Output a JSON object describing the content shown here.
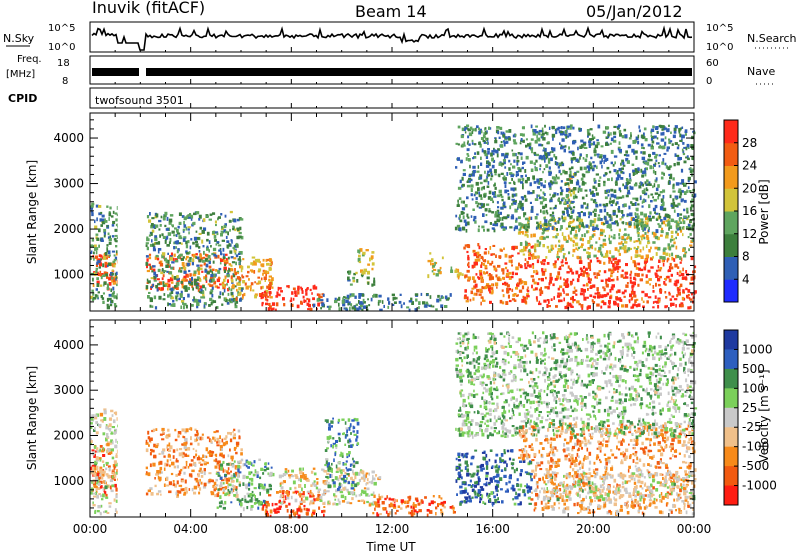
{
  "header": {
    "station": "Inuvik (fitACF)",
    "beam": "Beam 14",
    "date": "05/Jan/2012"
  },
  "top_panels": {
    "nsky_label": "N.Sky",
    "nsky_ticks": [
      "10^5",
      "10^0"
    ],
    "nsearch_label": "N.Search",
    "nsearch_ticks": [
      "10^5",
      "10^0"
    ],
    "freq_label_1": "Freq.",
    "freq_label_2": "[MHz]",
    "freq_ticks": [
      "18",
      "8"
    ],
    "nave_label": "Nave",
    "nave_ticks": [
      "60",
      "0"
    ],
    "cpid_label": "CPID",
    "cpid_value": "twofsound 3501"
  },
  "colors": {
    "power_scale": [
      "#1f2bff",
      "#2f5fb5",
      "#3d7f3d",
      "#5fa55f",
      "#d2c43a",
      "#f29a1c",
      "#f25c12",
      "#ff2a1a"
    ],
    "velocity_scale": [
      "#ff1d12",
      "#f25a10",
      "#f78a1a",
      "#f0c08a",
      "#c9c9c9",
      "#7bd05a",
      "#3f8f4b",
      "#2e5fbf",
      "#1f3aa0"
    ]
  },
  "chart_data": [
    {
      "type": "heatmap",
      "name": "power-panel",
      "ylabel": "Slant Range [km]",
      "y_ticks": [
        "1000",
        "2000",
        "3000",
        "4000"
      ],
      "y_tick_values": [
        1000,
        2000,
        3000,
        4000
      ],
      "ylim": [
        200,
        4550
      ],
      "x_ticks": [
        "00:00",
        "04:00",
        "08:00",
        "12:00",
        "16:00",
        "20:00",
        "00:00"
      ],
      "x_tick_values": [
        0,
        4,
        8,
        12,
        16,
        20,
        24
      ],
      "xlim": [
        0,
        24
      ],
      "colorbar": {
        "label": "Power [dB]",
        "ticks": [
          "4",
          "8",
          "12",
          "16",
          "20",
          "24",
          "28"
        ],
        "range": [
          0,
          32
        ]
      },
      "regions": [
        {
          "t0": 0.0,
          "t1": 1.1,
          "r0": 700,
          "r1": 1500,
          "level": 0.85
        },
        {
          "t0": 0.0,
          "t1": 1.1,
          "r0": 300,
          "r1": 2600,
          "level": 0.35
        },
        {
          "t0": 2.2,
          "t1": 5.5,
          "r0": 700,
          "r1": 1500,
          "level": 0.8
        },
        {
          "t0": 2.2,
          "t1": 6.0,
          "r0": 300,
          "r1": 2400,
          "level": 0.35
        },
        {
          "t0": 5.5,
          "t1": 7.2,
          "r0": 500,
          "r1": 1400,
          "level": 0.7
        },
        {
          "t0": 6.7,
          "t1": 9.2,
          "r0": 250,
          "r1": 800,
          "level": 0.95
        },
        {
          "t0": 8.8,
          "t1": 14.3,
          "r0": 250,
          "r1": 600,
          "level": 0.3
        },
        {
          "t0": 10.2,
          "t1": 11.3,
          "r0": 800,
          "r1": 1100,
          "level": 0.4
        },
        {
          "t0": 10.6,
          "t1": 11.2,
          "r0": 1050,
          "r1": 1600,
          "level": 0.55
        },
        {
          "t0": 13.4,
          "t1": 14.0,
          "r0": 1000,
          "r1": 1500,
          "level": 0.55
        },
        {
          "t0": 14.3,
          "t1": 14.9,
          "r0": 900,
          "r1": 1200,
          "level": 0.55
        },
        {
          "t0": 14.8,
          "t1": 17.8,
          "r0": 400,
          "r1": 1700,
          "level": 0.8
        },
        {
          "t0": 17.8,
          "t1": 24.0,
          "r0": 300,
          "r1": 1400,
          "level": 0.9
        },
        {
          "t0": 17.0,
          "t1": 24.0,
          "r0": 1400,
          "r1": 2300,
          "level": 0.55
        },
        {
          "t0": 18.8,
          "t1": 19.2,
          "r0": 2500,
          "r1": 3300,
          "level": 0.6
        },
        {
          "t0": 14.5,
          "t1": 24.0,
          "r0": 2000,
          "r1": 4300,
          "level": 0.3
        }
      ]
    },
    {
      "type": "heatmap",
      "name": "velocity-panel",
      "ylabel": "Slant Range [km]",
      "y_ticks": [
        "1000",
        "2000",
        "3000",
        "4000"
      ],
      "y_tick_values": [
        1000,
        2000,
        3000,
        4000
      ],
      "ylim": [
        200,
        4550
      ],
      "x_ticks": [
        "00:00",
        "04:00",
        "08:00",
        "12:00",
        "16:00",
        "20:00",
        "00:00"
      ],
      "x_tick_values": [
        0,
        4,
        8,
        12,
        16,
        20,
        24
      ],
      "xlim": [
        0,
        24
      ],
      "xlabel": "Time UT",
      "colorbar": {
        "label": "Velocity [m s⁻¹]",
        "ticks": [
          "1000",
          "500",
          "100",
          "25",
          "-25",
          "-100",
          "-500",
          "-1000"
        ]
      },
      "regions": [
        {
          "t0": 0.0,
          "t1": 1.1,
          "r0": 700,
          "r1": 1800,
          "level": 0.25
        },
        {
          "t0": 0.0,
          "t1": 1.1,
          "r0": 300,
          "r1": 2600,
          "level": 0.5
        },
        {
          "t0": 2.2,
          "t1": 6.0,
          "r0": 700,
          "r1": 2200,
          "level": 0.3
        },
        {
          "t0": 5.0,
          "t1": 7.2,
          "r0": 400,
          "r1": 1500,
          "level": 0.65
        },
        {
          "t0": 6.8,
          "t1": 9.3,
          "r0": 250,
          "r1": 800,
          "level": 0.15
        },
        {
          "t0": 7.5,
          "t1": 11.5,
          "r0": 500,
          "r1": 1300,
          "level": 0.45
        },
        {
          "t0": 9.3,
          "t1": 10.6,
          "r0": 800,
          "r1": 2400,
          "level": 0.7
        },
        {
          "t0": 11.2,
          "t1": 14.5,
          "r0": 250,
          "r1": 700,
          "level": 0.2
        },
        {
          "t0": 14.5,
          "t1": 17.5,
          "r0": 500,
          "r1": 1700,
          "level": 0.82
        },
        {
          "t0": 17.5,
          "t1": 24.0,
          "r0": 300,
          "r1": 1400,
          "level": 0.35
        },
        {
          "t0": 18.0,
          "t1": 24.0,
          "r0": 600,
          "r1": 1200,
          "level": 0.5
        },
        {
          "t0": 17.0,
          "t1": 24.0,
          "r0": 1400,
          "r1": 2300,
          "level": 0.3
        },
        {
          "t0": 14.5,
          "t1": 24.0,
          "r0": 2000,
          "r1": 4300,
          "level": 0.6
        }
      ]
    }
  ]
}
